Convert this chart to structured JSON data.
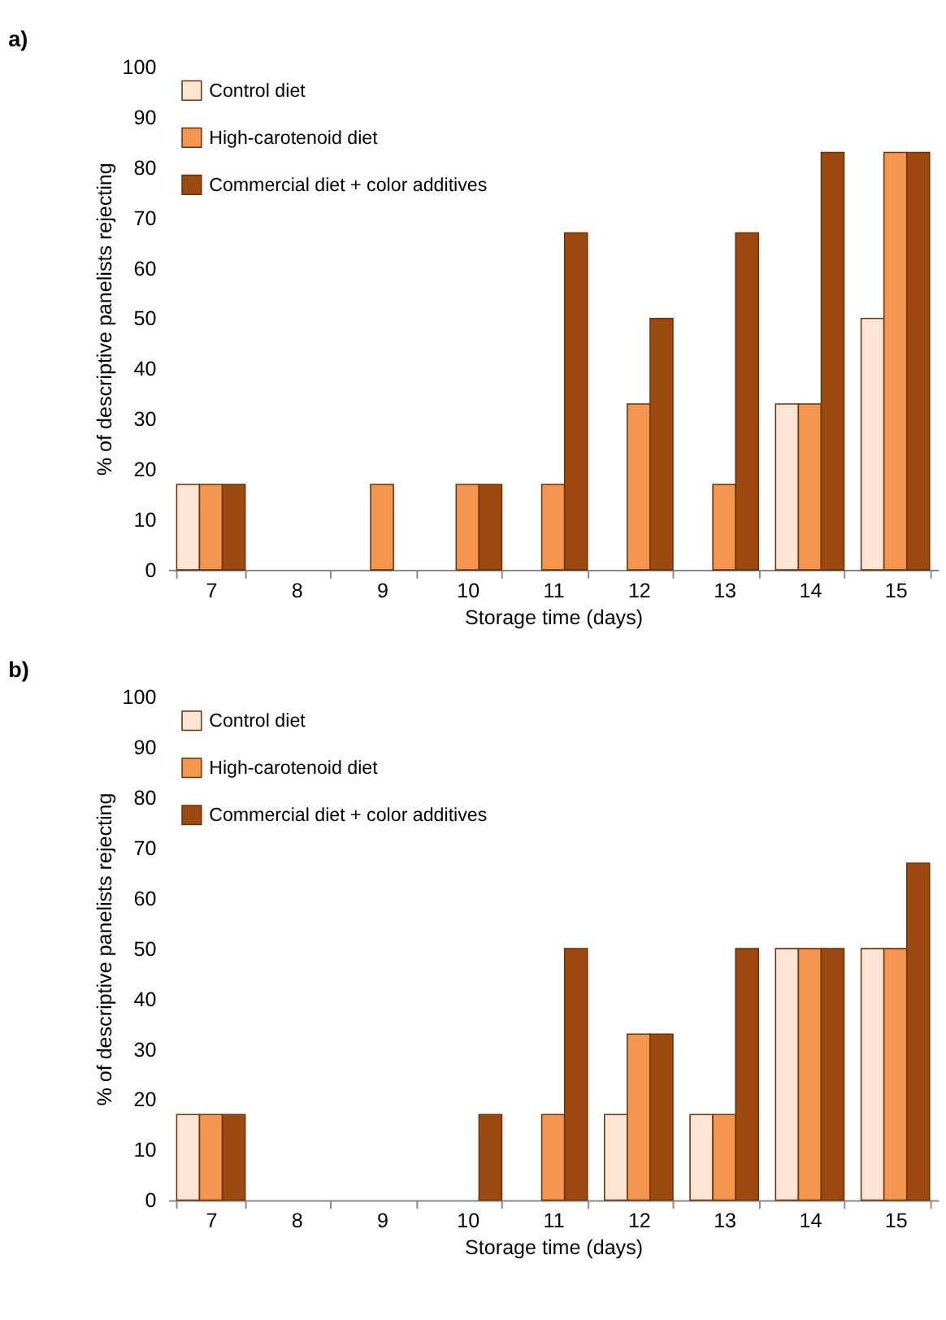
{
  "chart_data": [
    {
      "type": "bar",
      "title": "a)",
      "xlabel": "Storage time (days)",
      "ylabel": "% of descriptive panelists rejecting",
      "categories": [
        "7",
        "8",
        "9",
        "10",
        "11",
        "12",
        "13",
        "14",
        "15"
      ],
      "series": [
        {
          "name": "Control diet",
          "color": "#fde5d6",
          "values": [
            17,
            0,
            0,
            0,
            0,
            0,
            0,
            33,
            50
          ]
        },
        {
          "name": "High-carotenoid diet",
          "color": "#f4964f",
          "values": [
            17,
            0,
            17,
            17,
            17,
            33,
            17,
            33,
            83
          ]
        },
        {
          "name": "Commercial diet + color additives",
          "color": "#9c4a10",
          "values": [
            17,
            0,
            0,
            17,
            67,
            50,
            67,
            83,
            83
          ]
        }
      ],
      "ylim": [
        0,
        100
      ],
      "yticks": [
        0,
        10,
        20,
        30,
        40,
        50,
        60,
        70,
        80,
        90,
        100
      ],
      "grid": false,
      "legend": "top left"
    },
    {
      "type": "bar",
      "title": "b)",
      "xlabel": "Storage time (days)",
      "ylabel": "% of descriptive panelists rejecting",
      "categories": [
        "7",
        "8",
        "9",
        "10",
        "11",
        "12",
        "13",
        "14",
        "15"
      ],
      "series": [
        {
          "name": "Control diet",
          "color": "#fde5d6",
          "values": [
            17,
            0,
            0,
            0,
            0,
            17,
            17,
            50,
            50
          ]
        },
        {
          "name": "High-carotenoid diet",
          "color": "#f4964f",
          "values": [
            17,
            0,
            0,
            0,
            17,
            33,
            17,
            50,
            50
          ]
        },
        {
          "name": "Commercial diet + color additives",
          "color": "#9c4a10",
          "values": [
            17,
            0,
            0,
            17,
            50,
            33,
            50,
            50,
            67
          ]
        }
      ],
      "ylim": [
        0,
        100
      ],
      "yticks": [
        0,
        10,
        20,
        30,
        40,
        50,
        60,
        70,
        80,
        90,
        100
      ],
      "grid": false,
      "legend": "top left"
    }
  ]
}
